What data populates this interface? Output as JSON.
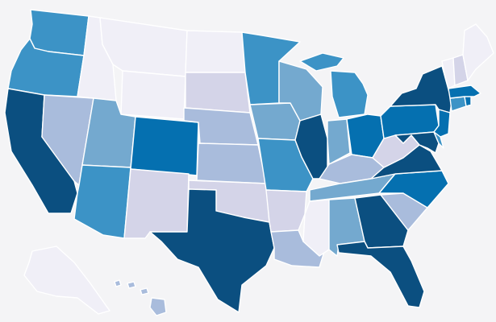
{
  "map": {
    "type": "choropleth",
    "region": "United States",
    "level_colors": [
      "#f0eff7",
      "#d4d4e8",
      "#a9bcdc",
      "#74a9cf",
      "#3c93c6",
      "#0570b0",
      "#0b4f80"
    ],
    "background": "#f4f4f6"
  },
  "states": [
    {
      "code": "WA",
      "level": 4
    },
    {
      "code": "OR",
      "level": 4
    },
    {
      "code": "CA",
      "level": 6
    },
    {
      "code": "NV",
      "level": 2
    },
    {
      "code": "ID",
      "level": 0
    },
    {
      "code": "MT",
      "level": 0
    },
    {
      "code": "WY",
      "level": 0
    },
    {
      "code": "UT",
      "level": 3
    },
    {
      "code": "AZ",
      "level": 4
    },
    {
      "code": "CO",
      "level": 5
    },
    {
      "code": "NM",
      "level": 1
    },
    {
      "code": "ND",
      "level": 0
    },
    {
      "code": "SD",
      "level": 1
    },
    {
      "code": "NE",
      "level": 2
    },
    {
      "code": "KS",
      "level": 2
    },
    {
      "code": "OK",
      "level": 1
    },
    {
      "code": "TX",
      "level": 6
    },
    {
      "code": "MN",
      "level": 4
    },
    {
      "code": "IA",
      "level": 3
    },
    {
      "code": "MO",
      "level": 4
    },
    {
      "code": "AR",
      "level": 1
    },
    {
      "code": "LA",
      "level": 2
    },
    {
      "code": "WI",
      "level": 3
    },
    {
      "code": "IL",
      "level": 6
    },
    {
      "code": "MI",
      "level": 4
    },
    {
      "code": "IN",
      "level": 3
    },
    {
      "code": "OH",
      "level": 5
    },
    {
      "code": "KY",
      "level": 2
    },
    {
      "code": "TN",
      "level": 3
    },
    {
      "code": "MS",
      "level": 0
    },
    {
      "code": "AL",
      "level": 3
    },
    {
      "code": "GA",
      "level": 6
    },
    {
      "code": "FL",
      "level": 6
    },
    {
      "code": "SC",
      "level": 2
    },
    {
      "code": "NC",
      "level": 5
    },
    {
      "code": "VA",
      "level": 6
    },
    {
      "code": "WV",
      "level": 1
    },
    {
      "code": "PA",
      "level": 5
    },
    {
      "code": "NY",
      "level": 6
    },
    {
      "code": "NJ",
      "level": 5
    },
    {
      "code": "MD",
      "level": 6
    },
    {
      "code": "DE",
      "level": 4
    },
    {
      "code": "CT",
      "level": 4
    },
    {
      "code": "RI",
      "level": 5
    },
    {
      "code": "MA",
      "level": 5
    },
    {
      "code": "VT",
      "level": 0
    },
    {
      "code": "NH",
      "level": 1
    },
    {
      "code": "ME",
      "level": 0
    },
    {
      "code": "AK",
      "level": 0
    },
    {
      "code": "HI",
      "level": 2
    }
  ]
}
